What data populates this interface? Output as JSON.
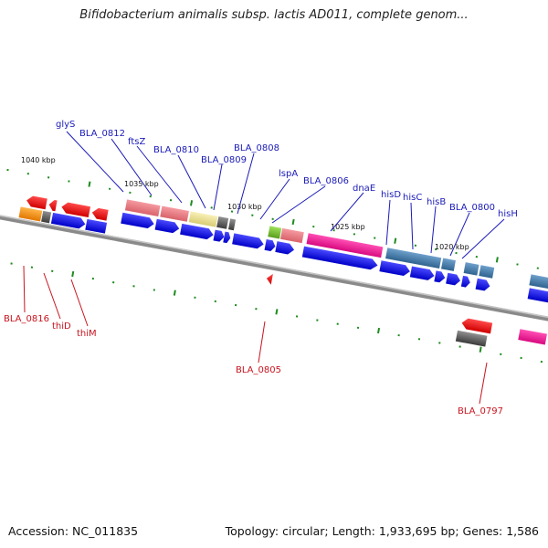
{
  "title": "Bifidobacterium animalis subsp. lactis AD011, complete genom...",
  "accession_text": "Accession: NC_011835",
  "summary_text": "Topology: circular; Length: 1,933,695 bp; Genes: 1,586",
  "colors": {
    "backbone": "#888888",
    "top_label": "#1a1ab8",
    "bottom_label": "#c8141e",
    "tick_mark": "#1e8c1e"
  },
  "kbp_ticks": [
    {
      "label": "1040 kbp"
    },
    {
      "label": "1035 kbp"
    },
    {
      "label": "1030 kbp"
    },
    {
      "label": "1025 kbp"
    },
    {
      "label": "1020 kbp"
    }
  ],
  "top_genes": [
    {
      "label": "glyS"
    },
    {
      "label": "BLA_0812"
    },
    {
      "label": "ftsZ"
    },
    {
      "label": "BLA_0810"
    },
    {
      "label": "BLA_0809"
    },
    {
      "label": "BLA_0808"
    },
    {
      "label": "lspA"
    },
    {
      "label": "BLA_0806"
    },
    {
      "label": "dnaE"
    },
    {
      "label": "hisD"
    },
    {
      "label": "hisC"
    },
    {
      "label": "hisB"
    },
    {
      "label": "BLA_0800"
    },
    {
      "label": "hisH"
    }
  ],
  "bottom_genes": [
    {
      "label": "BLA_0816"
    },
    {
      "label": "thiD"
    },
    {
      "label": "thiM"
    },
    {
      "label": "BLA_0805"
    },
    {
      "label": "BLA_0797"
    }
  ]
}
